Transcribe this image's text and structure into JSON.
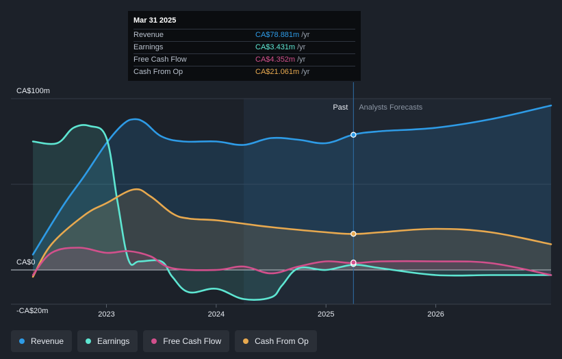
{
  "tooltip": {
    "date": "Mar 31 2025",
    "rows": [
      {
        "label": "Revenue",
        "value": "CA$78.881m",
        "unit": "/yr",
        "color": "#2e9be6"
      },
      {
        "label": "Earnings",
        "value": "CA$3.431m",
        "unit": "/yr",
        "color": "#5ee6d2"
      },
      {
        "label": "Free Cash Flow",
        "value": "CA$4.352m",
        "unit": "/yr",
        "color": "#d2508c"
      },
      {
        "label": "Cash From Op",
        "value": "CA$21.061m",
        "unit": "/yr",
        "color": "#e8a94f"
      }
    ]
  },
  "legend": [
    {
      "label": "Revenue",
      "color": "#2e9be6"
    },
    {
      "label": "Earnings",
      "color": "#5ee6d2"
    },
    {
      "label": "Free Cash Flow",
      "color": "#d2508c"
    },
    {
      "label": "Cash From Op",
      "color": "#e8a94f"
    }
  ],
  "chart_data": {
    "type": "line",
    "title": "",
    "x_ticks": [
      {
        "label": "2023",
        "x": 2023.0
      },
      {
        "label": "2024",
        "x": 2024.0
      },
      {
        "label": "2025",
        "x": 2025.0
      },
      {
        "label": "2026",
        "x": 2026.0
      }
    ],
    "y_ticks": [
      {
        "label": "CA$100m",
        "y": 100
      },
      {
        "label": "CA$0",
        "y": 0
      },
      {
        "label": "-CA$20m",
        "y": -20
      }
    ],
    "xlim": [
      2022.13,
      2027.05
    ],
    "ylim": [
      -20,
      100
    ],
    "y_gridlines": [
      100,
      50,
      0
    ],
    "past_label": "Past",
    "forecast_label": "Analysts Forecasts",
    "divider_x": 2025.25,
    "highlight_range": [
      2024.25,
      2025.25
    ],
    "series": [
      {
        "name": "Revenue",
        "color": "#2e9be6",
        "points": [
          [
            2022.33,
            9
          ],
          [
            2022.6,
            37
          ],
          [
            2022.8,
            55
          ],
          [
            2023.0,
            74
          ],
          [
            2023.15,
            85
          ],
          [
            2023.25,
            88
          ],
          [
            2023.35,
            86
          ],
          [
            2023.5,
            78
          ],
          [
            2023.7,
            75
          ],
          [
            2024.0,
            75
          ],
          [
            2024.25,
            73
          ],
          [
            2024.5,
            77
          ],
          [
            2024.75,
            76
          ],
          [
            2025.0,
            74
          ],
          [
            2025.25,
            79
          ],
          [
            2025.5,
            81
          ],
          [
            2026.0,
            83
          ],
          [
            2026.5,
            88
          ],
          [
            2027.05,
            96
          ]
        ]
      },
      {
        "name": "Earnings",
        "color": "#5ee6d2",
        "points": [
          [
            2022.33,
            75
          ],
          [
            2022.55,
            74
          ],
          [
            2022.7,
            83
          ],
          [
            2022.85,
            84
          ],
          [
            2023.0,
            77
          ],
          [
            2023.1,
            40
          ],
          [
            2023.2,
            6
          ],
          [
            2023.3,
            5
          ],
          [
            2023.5,
            5
          ],
          [
            2023.6,
            -4
          ],
          [
            2023.75,
            -13
          ],
          [
            2024.0,
            -11
          ],
          [
            2024.25,
            -17
          ],
          [
            2024.5,
            -16
          ],
          [
            2024.6,
            -9
          ],
          [
            2024.75,
            1
          ],
          [
            2025.0,
            0
          ],
          [
            2025.25,
            3
          ],
          [
            2025.5,
            1
          ],
          [
            2026.0,
            -3
          ],
          [
            2026.5,
            -3
          ],
          [
            2027.05,
            -3
          ]
        ]
      },
      {
        "name": "Free Cash Flow",
        "color": "#d2508c",
        "points": [
          [
            2022.33,
            -3
          ],
          [
            2022.5,
            10
          ],
          [
            2022.75,
            13
          ],
          [
            2023.0,
            10
          ],
          [
            2023.2,
            11
          ],
          [
            2023.4,
            8
          ],
          [
            2023.6,
            1
          ],
          [
            2024.0,
            0
          ],
          [
            2024.25,
            2
          ],
          [
            2024.5,
            -2
          ],
          [
            2024.75,
            2
          ],
          [
            2025.0,
            5
          ],
          [
            2025.25,
            4
          ],
          [
            2025.5,
            5
          ],
          [
            2026.0,
            5
          ],
          [
            2026.5,
            4
          ],
          [
            2027.05,
            -3
          ]
        ]
      },
      {
        "name": "Cash From Op",
        "color": "#e8a94f",
        "points": [
          [
            2022.33,
            -4
          ],
          [
            2022.5,
            15
          ],
          [
            2022.8,
            32
          ],
          [
            2023.0,
            39
          ],
          [
            2023.25,
            47
          ],
          [
            2023.4,
            43
          ],
          [
            2023.6,
            33
          ],
          [
            2023.75,
            30
          ],
          [
            2024.0,
            29
          ],
          [
            2024.25,
            27
          ],
          [
            2024.5,
            25
          ],
          [
            2025.0,
            22
          ],
          [
            2025.25,
            21
          ],
          [
            2025.5,
            22
          ],
          [
            2026.0,
            24
          ],
          [
            2026.5,
            22
          ],
          [
            2027.05,
            15
          ]
        ]
      }
    ],
    "markers": [
      {
        "series": "Revenue",
        "x": 2025.25,
        "y": 78.881
      },
      {
        "series": "Earnings",
        "x": 2025.25,
        "y": 3.431
      },
      {
        "series": "Free Cash Flow",
        "x": 2025.25,
        "y": 4.352
      },
      {
        "series": "Cash From Op",
        "x": 2025.25,
        "y": 21.061
      }
    ]
  }
}
